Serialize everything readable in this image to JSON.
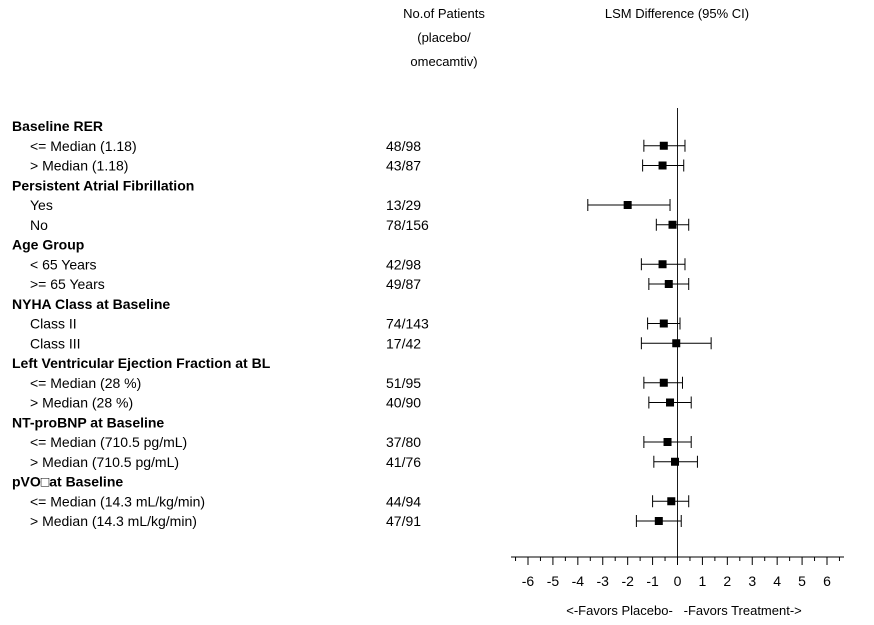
{
  "header": {
    "patients_lines": [
      "No.of Patients",
      "(placebo/",
      "omecamtiv)"
    ],
    "effect_title": "LSM Difference (95% CI)"
  },
  "chart_data": {
    "type": "forest",
    "title": "",
    "xlabel": "<-Favors Placebo-   -Favors Treatment->",
    "xlim": [
      -6.5,
      6.5
    ],
    "xticks": [
      -6,
      -5,
      -4,
      -3,
      -2,
      -1,
      0,
      1,
      2,
      3,
      4,
      5,
      6
    ],
    "reference_line": 0,
    "grid": false,
    "rows": [
      {
        "kind": "group",
        "label": "Baseline RER"
      },
      {
        "kind": "subgroup",
        "label": "<= Median (1.18)",
        "n": "48/98",
        "est": -0.55,
        "lo": -1.35,
        "hi": 0.3
      },
      {
        "kind": "subgroup",
        "label": "> Median (1.18)",
        "n": "43/87",
        "est": -0.6,
        "lo": -1.4,
        "hi": 0.25
      },
      {
        "kind": "group",
        "label": "Persistent Atrial Fibrillation"
      },
      {
        "kind": "subgroup",
        "label": "Yes",
        "n": "13/29",
        "est": -2.0,
        "lo": -3.6,
        "hi": -0.3
      },
      {
        "kind": "subgroup",
        "label": "No",
        "n": "78/156",
        "est": -0.2,
        "lo": -0.85,
        "hi": 0.45
      },
      {
        "kind": "group",
        "label": "Age Group"
      },
      {
        "kind": "subgroup",
        "label": "< 65 Years",
        "n": "42/98",
        "est": -0.6,
        "lo": -1.45,
        "hi": 0.3
      },
      {
        "kind": "subgroup",
        "label": ">= 65 Years",
        "n": "49/87",
        "est": -0.35,
        "lo": -1.15,
        "hi": 0.45
      },
      {
        "kind": "group",
        "label": "NYHA Class at Baseline"
      },
      {
        "kind": "subgroup",
        "label": "Class II",
        "n": "74/143",
        "est": -0.55,
        "lo": -1.2,
        "hi": 0.1
      },
      {
        "kind": "subgroup",
        "label": "Class III",
        "n": "17/42",
        "est": -0.05,
        "lo": -1.45,
        "hi": 1.35
      },
      {
        "kind": "group",
        "label": "Left Ventricular Ejection Fraction at BL"
      },
      {
        "kind": "subgroup",
        "label": "<= Median (28 %)",
        "n": "51/95",
        "est": -0.55,
        "lo": -1.35,
        "hi": 0.2
      },
      {
        "kind": "subgroup",
        "label": "> Median (28 %)",
        "n": "40/90",
        "est": -0.3,
        "lo": -1.15,
        "hi": 0.55
      },
      {
        "kind": "group",
        "label": "NT-proBNP at Baseline"
      },
      {
        "kind": "subgroup",
        "label": "<= Median (710.5 pg/mL)",
        "n": "37/80",
        "est": -0.4,
        "lo": -1.35,
        "hi": 0.55
      },
      {
        "kind": "subgroup",
        "label": "> Median (710.5 pg/mL)",
        "n": "41/76",
        "est": -0.1,
        "lo": -0.95,
        "hi": 0.8
      },
      {
        "kind": "group",
        "label": "pVO□at Baseline"
      },
      {
        "kind": "subgroup",
        "label": "<= Median (14.3 mL/kg/min)",
        "n": "44/94",
        "est": -0.25,
        "lo": -1.0,
        "hi": 0.45
      },
      {
        "kind": "subgroup",
        "label": "> Median (14.3 mL/kg/min)",
        "n": "47/91",
        "est": -0.75,
        "lo": -1.65,
        "hi": 0.15
      }
    ]
  }
}
